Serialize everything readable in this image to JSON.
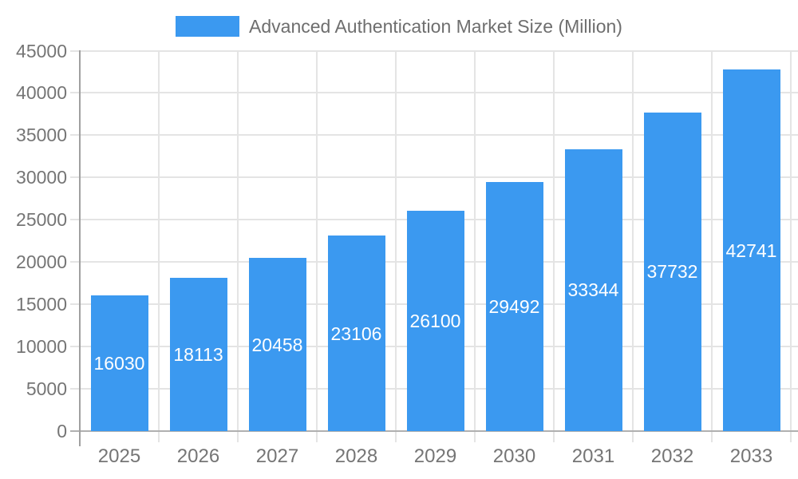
{
  "chart_data": {
    "type": "bar",
    "title": "",
    "legend_label": "Advanced Authentication Market Size (Million)",
    "legend_position": "top",
    "categories": [
      "2025",
      "2026",
      "2027",
      "2028",
      "2029",
      "2030",
      "2031",
      "2032",
      "2033"
    ],
    "series": [
      {
        "name": "Advanced Authentication Market Size (Million)",
        "values": [
          16030,
          18113,
          20458,
          23106,
          26100,
          29492,
          33344,
          37732,
          42741
        ]
      }
    ],
    "bar_labels": [
      16030,
      18113,
      20458,
      23106,
      26100,
      29492,
      33344,
      37732,
      42741
    ],
    "xlabel": "",
    "ylabel": "",
    "ylim": [
      0,
      45000
    ],
    "ytick_step": 5000,
    "ytick_labels": [
      "0",
      "5000",
      "10000",
      "15000",
      "20000",
      "25000",
      "30000",
      "35000",
      "40000",
      "45000"
    ],
    "grid": true
  },
  "colors": {
    "bar": "#3b99f0",
    "legend_swatch": "#3b99f0",
    "grid_line": "#e4e4e4",
    "axis_line": "#a0a0a0",
    "baseline": "#b0b0b0",
    "tick_text": "#757575",
    "legend_text": "#6e6e6e",
    "bar_label_text": "#ffffff",
    "background": "#ffffff"
  }
}
